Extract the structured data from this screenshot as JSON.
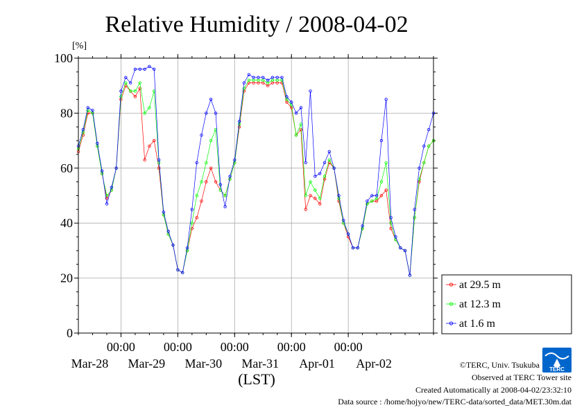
{
  "chart_data": {
    "type": "line",
    "title": "Relative Humidity / 2008-04-02",
    "ylabel": "[%]",
    "xlabel": "(LST)",
    "ylim": [
      0,
      100
    ],
    "yticks": [
      0,
      20,
      40,
      60,
      80,
      100
    ],
    "xlim": [
      "2008-03-27T06:00",
      "2008-04-02T12:00"
    ],
    "x_time_ticks": [
      "00:00",
      "00:00",
      "00:00",
      "00:00",
      "00:00"
    ],
    "x_date_labels": [
      "Mar-28",
      "Mar-29",
      "Mar-30",
      "Mar-31",
      "Apr-01",
      "Apr-02"
    ],
    "grid": true,
    "legend_position": "right-bottom",
    "x": [
      "2008-03-27T06:00",
      "2008-03-27T08:00",
      "2008-03-27T10:00",
      "2008-03-27T12:00",
      "2008-03-27T14:00",
      "2008-03-27T16:00",
      "2008-03-27T18:00",
      "2008-03-27T20:00",
      "2008-03-27T22:00",
      "2008-03-28T00:00",
      "2008-03-28T02:00",
      "2008-03-28T04:00",
      "2008-03-28T06:00",
      "2008-03-28T08:00",
      "2008-03-28T10:00",
      "2008-03-28T12:00",
      "2008-03-28T14:00",
      "2008-03-28T16:00",
      "2008-03-28T18:00",
      "2008-03-28T20:00",
      "2008-03-28T22:00",
      "2008-03-29T00:00",
      "2008-03-29T02:00",
      "2008-03-29T04:00",
      "2008-03-29T06:00",
      "2008-03-29T08:00",
      "2008-03-29T10:00",
      "2008-03-29T12:00",
      "2008-03-29T14:00",
      "2008-03-29T16:00",
      "2008-03-29T18:00",
      "2008-03-29T20:00",
      "2008-03-29T22:00",
      "2008-03-30T00:00",
      "2008-03-30T02:00",
      "2008-03-30T04:00",
      "2008-03-30T06:00",
      "2008-03-30T08:00",
      "2008-03-30T10:00",
      "2008-03-30T12:00",
      "2008-03-30T14:00",
      "2008-03-30T16:00",
      "2008-03-30T18:00",
      "2008-03-30T20:00",
      "2008-03-30T22:00",
      "2008-03-31T00:00",
      "2008-03-31T02:00",
      "2008-03-31T04:00",
      "2008-03-31T06:00",
      "2008-03-31T08:00",
      "2008-03-31T10:00",
      "2008-03-31T12:00",
      "2008-03-31T14:00",
      "2008-03-31T16:00",
      "2008-03-31T18:00",
      "2008-03-31T20:00",
      "2008-03-31T22:00",
      "2008-04-01T00:00",
      "2008-04-01T02:00",
      "2008-04-01T04:00",
      "2008-04-01T06:00",
      "2008-04-01T08:00",
      "2008-04-01T10:00",
      "2008-04-01T12:00",
      "2008-04-01T14:00",
      "2008-04-01T16:00",
      "2008-04-01T18:00",
      "2008-04-01T20:00",
      "2008-04-01T22:00",
      "2008-04-02T00:00",
      "2008-04-02T02:00",
      "2008-04-02T04:00",
      "2008-04-02T06:00",
      "2008-04-02T08:00",
      "2008-04-02T10:00",
      "2008-04-02T12:00"
    ],
    "series": [
      {
        "name": "at 29.5 m",
        "color": "#ff0000",
        "values": [
          66,
          72,
          80,
          80,
          68,
          58,
          49,
          52,
          60,
          85,
          90,
          88,
          86,
          89,
          63,
          68,
          70,
          60,
          43,
          36,
          32,
          23,
          22,
          30,
          38,
          42,
          48,
          55,
          60,
          55,
          52,
          50,
          56,
          62,
          75,
          88,
          91,
          91,
          91,
          91,
          90,
          91,
          91,
          91,
          84,
          82,
          72,
          74,
          45,
          50,
          49,
          47,
          56,
          62,
          60,
          48,
          40,
          35,
          31,
          31,
          38,
          47,
          48,
          48,
          50,
          52,
          38,
          34,
          31,
          30,
          21,
          42,
          55,
          62,
          68,
          70
        ]
      },
      {
        "name": "at 12.3 m",
        "color": "#00ff00",
        "values": [
          67,
          73,
          81,
          80,
          68,
          58,
          50,
          52,
          60,
          86,
          91,
          88,
          88,
          91,
          80,
          82,
          88,
          62,
          43,
          36,
          32,
          23,
          22,
          30,
          40,
          50,
          55,
          62,
          70,
          74,
          52,
          50,
          56,
          62,
          76,
          89,
          92,
          92,
          92,
          92,
          91,
          92,
          92,
          92,
          85,
          83,
          72,
          76,
          50,
          55,
          52,
          49,
          57,
          63,
          60,
          49,
          40,
          36,
          31,
          31,
          38,
          47,
          48,
          49,
          55,
          62,
          40,
          34,
          31,
          30,
          21,
          42,
          56,
          62,
          68,
          70
        ]
      },
      {
        "name": "at 1.6 m",
        "color": "#0000ff",
        "values": [
          68,
          74,
          82,
          81,
          69,
          59,
          47,
          53,
          60,
          88,
          93,
          91,
          96,
          96,
          96,
          97,
          96,
          63,
          44,
          37,
          32,
          23,
          22,
          31,
          45,
          62,
          72,
          80,
          85,
          80,
          54,
          46,
          57,
          63,
          77,
          91,
          94,
          93,
          93,
          93,
          92,
          93,
          93,
          93,
          86,
          84,
          80,
          82,
          62,
          88,
          57,
          58,
          62,
          66,
          60,
          50,
          41,
          36,
          31,
          31,
          39,
          48,
          50,
          50,
          70,
          85,
          42,
          35,
          31,
          30,
          21,
          45,
          60,
          68,
          74,
          80
        ]
      }
    ]
  },
  "credits": {
    "copyright": "©TERC, Univ. Tsukuba",
    "observed": "Observed at TERC Tower site",
    "created": "Created Automatically at 2008-04-02/23:32:10",
    "source": "Data source : /home/hojyo/new/TERC-data/sorted_data/MET.30m.dat"
  },
  "logo": {
    "text": "TERC",
    "color": "#0066cc"
  }
}
